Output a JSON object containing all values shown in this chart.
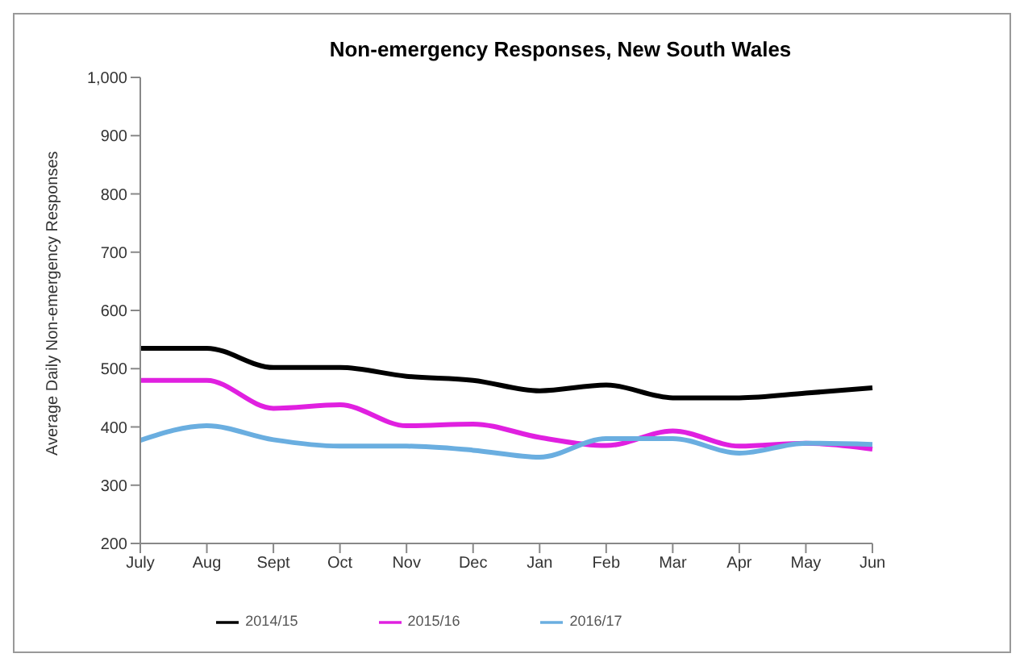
{
  "chart_data": {
    "type": "line",
    "title": "Non-emergency Responses, New South Wales",
    "ylabel": "Average Daily Non-emergency Responses",
    "categories": [
      "July",
      "Aug",
      "Sept",
      "Oct",
      "Nov",
      "Dec",
      "Jan",
      "Feb",
      "Mar",
      "Apr",
      "May",
      "Jun"
    ],
    "series": [
      {
        "name": "2014/15",
        "color": "#000000",
        "values": [
          535,
          535,
          502,
          502,
          487,
          480,
          462,
          472,
          450,
          450,
          458,
          467
        ]
      },
      {
        "name": "2015/16",
        "color": "#e020e0",
        "values": [
          480,
          480,
          432,
          438,
          402,
          405,
          382,
          368,
          393,
          367,
          372,
          362
        ]
      },
      {
        "name": "2016/17",
        "color": "#6aaee0",
        "values": [
          377,
          402,
          378,
          367,
          367,
          360,
          348,
          380,
          380,
          355,
          372,
          370
        ]
      }
    ],
    "ylim": [
      200,
      1000
    ],
    "yticks": [
      {
        "value": 200,
        "label": "200"
      },
      {
        "value": 300,
        "label": "300"
      },
      {
        "value": 400,
        "label": "400"
      },
      {
        "value": 500,
        "label": "500"
      },
      {
        "value": 600,
        "label": "600"
      },
      {
        "value": 700,
        "label": "700"
      },
      {
        "value": 800,
        "label": "800"
      },
      {
        "value": 900,
        "label": "900"
      },
      {
        "value": 1000,
        "label": "1,000"
      }
    ],
    "grid": false,
    "legend": "bottom",
    "marker": "none",
    "line_style": "solid"
  }
}
